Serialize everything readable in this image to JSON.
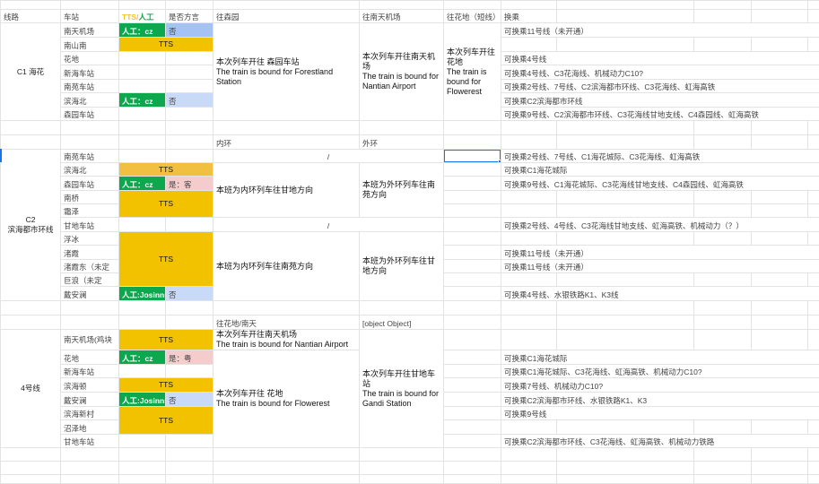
{
  "colors": {
    "manual_green": "#0da84e",
    "tts_yellow": "#f2c200",
    "tts_light": "#f1c040",
    "no_blue": "#a4c2f4",
    "no_light_blue": "#c9daf8",
    "yes_pink": "#f4cccc",
    "selection": "#1a73e8"
  },
  "header": {
    "line": "线路",
    "station": "车站",
    "tts": "TTS",
    "slash": "/",
    "manual": "人工",
    "dialect": "是否方言",
    "to_senyuan": "往森园",
    "to_nantian": "往南天机场",
    "to_huadi": "往花地（短线）",
    "transfer": "换乘"
  },
  "c1": {
    "name": "C1 海花",
    "stations": [
      "南天机场",
      "南山南",
      "花地",
      "新海车站",
      "南苑车站",
      "滨海北",
      "森园车站"
    ],
    "manual_cz": "人工：cz",
    "no": "否",
    "tts": "TTS",
    "to_senyuan": {
      "cn": "本次列车开往 森园车站",
      "en": "The train is bound for Forestland Station"
    },
    "to_nantian": {
      "cn": "本次列车开往南天机场",
      "en": "The train is bound for Nantian Airport"
    },
    "to_huadi": {
      "cn": "本次列车开往花地",
      "en": "The train is bound for Flowerest"
    },
    "transfers": [
      "可换乘11号线（未开通）",
      "",
      "可换乘4号线",
      "可换乘4号线、C3花海线、机械动力C10?",
      "可换乘2号线、7号线、C2滨海都市环线、C3花海线、虹海高铁",
      "可换乘C2滨海都市环线",
      "可换乘9号线、C2滨海都市环线、C3花海线甘地支线、C4森园线、虹海高铁"
    ]
  },
  "c2": {
    "name_top": "C2",
    "name_bottom": "滨海都市环线",
    "inner": "内环",
    "outer": "外环",
    "slash": "/",
    "stations": [
      "南苑车站",
      "滨海北",
      "森园车站",
      "南桥",
      "霜泽",
      "甘地车站",
      "浮冰",
      "渚霞",
      "渚霞东（未定",
      "巨浪（未定",
      "戴安澜"
    ],
    "tts": "TTS",
    "manual_cz": "人工：cz",
    "yes_hakka": "是：客",
    "manual_josinns": "人工:Josinns",
    "no": "否",
    "inner_to_gandi": "本班为内环列车往甘地方向",
    "outer_to_nanyuan": "本班为外环列车往南苑方向",
    "inner_to_nanyuan": "本班为内环列车往南苑方向",
    "outer_to_gandi": "本班为外环列车往甘地方向",
    "transfers": [
      "可换乘2号线、7号线、C1海花城际、C3花海线、虹海高铁",
      "可换乘C1海花城际",
      "可换乘9号线、C1海花城际、C3花海线甘地支线、C4森园线、虹海高铁",
      "",
      "",
      "可换乘2号线、4号线、C3花海线甘地支线、虹海高铁、机械动力（？）",
      "",
      "可换乘11号线（未开通）",
      "可换乘11号线（未开通）",
      "",
      "可换乘4号线、水银铁路K1、K3线"
    ]
  },
  "l4": {
    "name": "4号线",
    "to_huadi_nantian": "往花地/南天",
    "to_gandi": {
      "cn": "本次列车开往甘地车站",
      "en": "The train is bound for Gandi Station"
    },
    "stations": [
      "南天机场(鸡块",
      "花地",
      "新海车站",
      "滨海顿",
      "戴安澜",
      "滨海新村",
      "沼泽地",
      "甘地车站"
    ],
    "tts": "TTS",
    "manual_cz": "人工：cz",
    "yes_cantonese": "是：粤",
    "manual_josinns": "人工:Josinns",
    "no": "否",
    "to_nantian": {
      "cn": "本次列车开往南天机场",
      "en": "The train is bound for Nantian Airport"
    },
    "to_huadi": {
      "cn": "本次列车开往 花地",
      "en": "The train is bound for Flowerest"
    },
    "transfers": [
      "",
      "可换乘C1海花城际",
      "可换乘C1海花城际、C3花海线、虹海高铁、机械动力C10?",
      "可换乘7号线、机械动力C10?",
      "可换乘C2滨海都市环线、水银铁路K1、K3",
      "可换乘9号线",
      "",
      "可换乘C2滨海都市环线、C3花海线、虹海高铁、机械动力铁路"
    ]
  }
}
